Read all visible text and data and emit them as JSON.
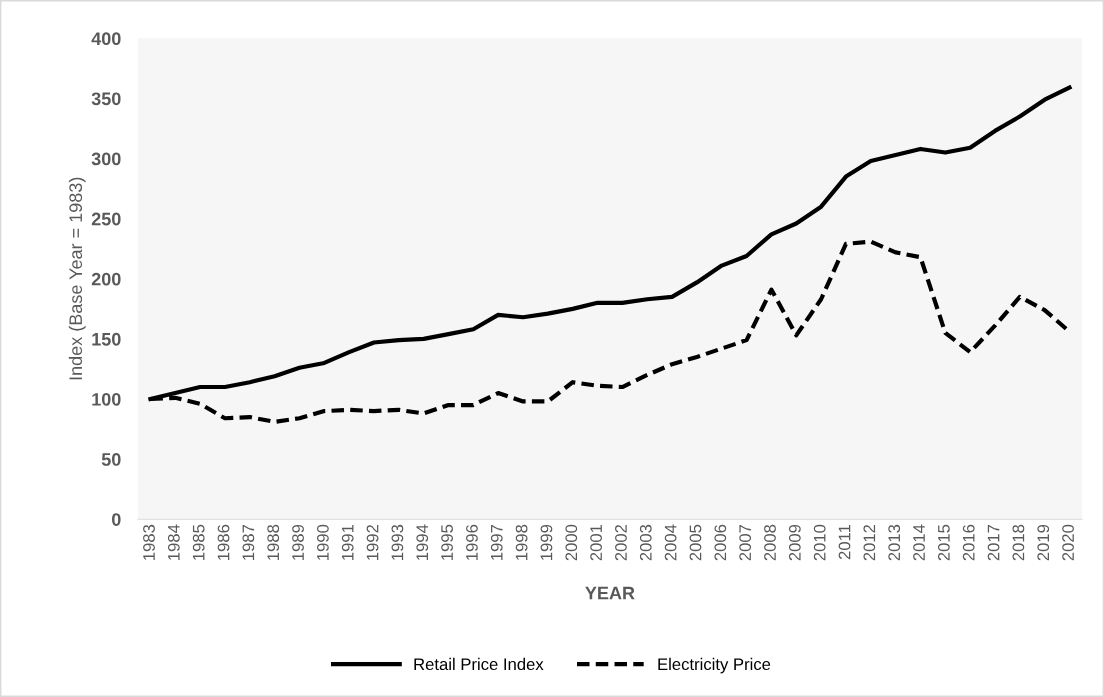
{
  "chart_data": {
    "type": "line",
    "xlabel": "YEAR",
    "ylabel": "Index (Base Year = 1983)",
    "categories": [
      "1983",
      "1984",
      "1985",
      "1986",
      "1987",
      "1988",
      "1989",
      "1990",
      "1991",
      "1992",
      "1993",
      "1994",
      "1995",
      "1996",
      "1997",
      "1998",
      "1999",
      "2000",
      "2001",
      "2002",
      "2003",
      "2004",
      "2005",
      "2006",
      "2007",
      "2008",
      "2009",
      "2010",
      "2011",
      "2012",
      "2013",
      "2014",
      "2015",
      "2016",
      "2017",
      "2018",
      "2019",
      "2020"
    ],
    "series": [
      {
        "name": "Retail Price Index",
        "color": "#000000",
        "line_style": "solid",
        "values": [
          100,
          105,
          110,
          110,
          114,
          119,
          126,
          130,
          139,
          147,
          149,
          150,
          154,
          158,
          170,
          168,
          171,
          175,
          180,
          180,
          183,
          185,
          197,
          211,
          219,
          237,
          246,
          260,
          285,
          298,
          303,
          308,
          305,
          309,
          323,
          335,
          349,
          359
        ]
      },
      {
        "name": "Electricity Price",
        "color": "#000000",
        "line_style": "dashed",
        "values": [
          100,
          101,
          96,
          84,
          85,
          81,
          84,
          90,
          91,
          90,
          91,
          88,
          95,
          95,
          105,
          98,
          98,
          114,
          111,
          110,
          120,
          129,
          135,
          142,
          149,
          191,
          153,
          183,
          229,
          231,
          222,
          218,
          155,
          139,
          161,
          185,
          174,
          156
        ]
      }
    ],
    "ylim": [
      0,
      400
    ],
    "yticks": [
      0,
      50,
      100,
      150,
      200,
      250,
      300,
      350,
      400
    ],
    "grid": false,
    "legend": "bottom",
    "marker": "none"
  }
}
